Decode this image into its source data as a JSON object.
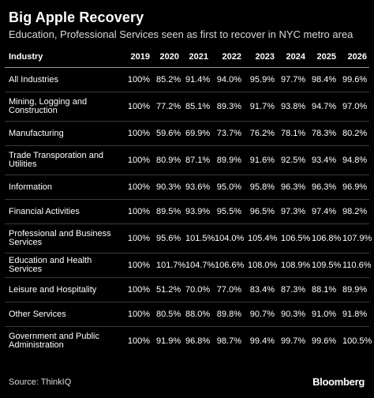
{
  "header": {
    "title": "Big Apple Recovery",
    "subtitle": "Education, Professional Services seen as first to recover in NYC metro area"
  },
  "chart_data": {
    "type": "table",
    "columns": [
      "Industry",
      "2019",
      "2020",
      "2021",
      "2022",
      "2023",
      "2024",
      "2025",
      "2026"
    ],
    "rows": [
      {
        "label": "All Industries",
        "values": [
          "100%",
          "85.2%",
          "91.4%",
          "94.0%",
          "95.9%",
          "97.7%",
          "98.4%",
          "99.6%"
        ]
      },
      {
        "label": "Mining, Logging and Construction",
        "values": [
          "100%",
          "77.2%",
          "85.1%",
          "89.3%",
          "91.7%",
          "93.8%",
          "94.7%",
          "97.0%"
        ]
      },
      {
        "label": "Manufacturing",
        "values": [
          "100%",
          "59.6%",
          "69.9%",
          "73.7%",
          "76.2%",
          "78.1%",
          "78.3%",
          "80.2%"
        ]
      },
      {
        "label": "Trade Transporation and Utilities",
        "values": [
          "100%",
          "80.9%",
          "87.1%",
          "89.9%",
          "91.6%",
          "92.5%",
          "93.4%",
          "94.8%"
        ]
      },
      {
        "label": "Information",
        "values": [
          "100%",
          "90.3%",
          "93.6%",
          "95.0%",
          "95.8%",
          "96.3%",
          "96.3%",
          "96.9%"
        ]
      },
      {
        "label": "Financial Activities",
        "values": [
          "100%",
          "89.5%",
          "93.9%",
          "95.5%",
          "96.5%",
          "97.3%",
          "97.4%",
          "98.2%"
        ]
      },
      {
        "label": "Professional and Business Services",
        "values": [
          "100%",
          "95.6%",
          "101.5%",
          "104.0%",
          "105.4%",
          "106.5%",
          "106.8%",
          "107.9%"
        ]
      },
      {
        "label": "Education and Health Services",
        "values": [
          "100%",
          "101.7%",
          "104.7%",
          "106.6%",
          "108.0%",
          "108.9%",
          "109.5%",
          "110.6%"
        ]
      },
      {
        "label": "Leisure and Hospitality",
        "values": [
          "100%",
          "51.2%",
          "70.0%",
          "77.0%",
          "83.4%",
          "87.3%",
          "88.1%",
          "89.9%"
        ]
      },
      {
        "label": "Other Services",
        "values": [
          "100%",
          "80.5%",
          "88.0%",
          "89.8%",
          "90.7%",
          "90.3%",
          "91.0%",
          "91.8%"
        ]
      },
      {
        "label": "Government and Public Administration",
        "values": [
          "100%",
          "91.9%",
          "96.8%",
          "98.7%",
          "99.4%",
          "99.7%",
          "99.6%",
          "100.5%"
        ]
      }
    ]
  },
  "footer": {
    "source": "Source: ThinkIQ",
    "brand": "Bloomberg"
  },
  "colors": {
    "background": "#000000",
    "text": "#ffffff"
  }
}
